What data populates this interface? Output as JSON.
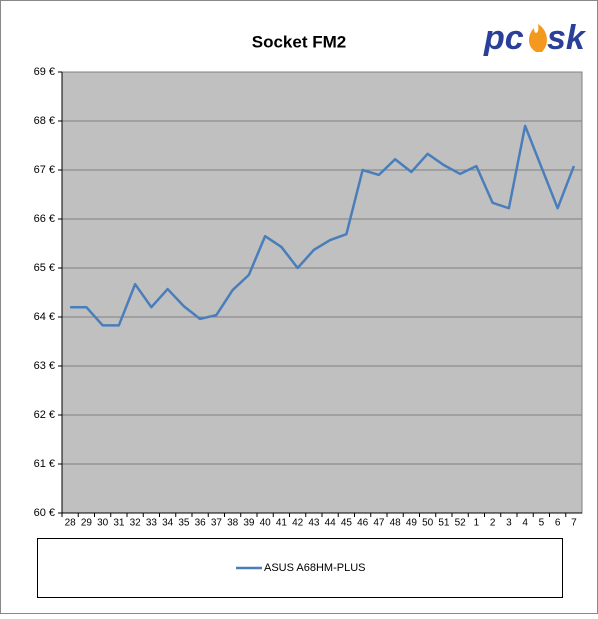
{
  "brand": [
    "pc",
    "sk"
  ],
  "chart_data": {
    "type": "line",
    "title": "Socket FM2",
    "categories": [
      "28",
      "29",
      "30",
      "31",
      "32",
      "33",
      "34",
      "35",
      "36",
      "37",
      "38",
      "39",
      "40",
      "41",
      "42",
      "43",
      "44",
      "45",
      "46",
      "47",
      "48",
      "49",
      "50",
      "51",
      "52",
      "1",
      "2",
      "3",
      "4",
      "5",
      "6",
      "7"
    ],
    "series": [
      {
        "name": "ASUS A68HM-PLUS",
        "color": "#4a7ebb",
        "values": [
          64.2,
          64.2,
          63.83,
          63.83,
          64.67,
          64.2,
          64.57,
          64.22,
          63.96,
          64.04,
          64.55,
          64.86,
          65.65,
          65.43,
          65.0,
          65.37,
          65.57,
          65.69,
          67.0,
          66.9,
          67.22,
          66.96,
          67.33,
          67.1,
          66.92,
          67.08,
          66.33,
          66.22,
          67.9,
          67.06,
          66.22,
          67.08
        ]
      }
    ],
    "ylim": [
      60,
      69
    ],
    "yticks": [
      {
        "value": 60,
        "label": "60 €"
      },
      {
        "value": 61,
        "label": "61 €"
      },
      {
        "value": 62,
        "label": "62 €"
      },
      {
        "value": 63,
        "label": "63 €"
      },
      {
        "value": 64,
        "label": "64 €"
      },
      {
        "value": 65,
        "label": "65 €"
      },
      {
        "value": 66,
        "label": "66 €"
      },
      {
        "value": 67,
        "label": "67 €"
      },
      {
        "value": 68,
        "label": "68 €"
      },
      {
        "value": 69,
        "label": "69 €"
      }
    ],
    "grid": true,
    "plot_background": "#c0c0c0",
    "legend": "bottom"
  }
}
